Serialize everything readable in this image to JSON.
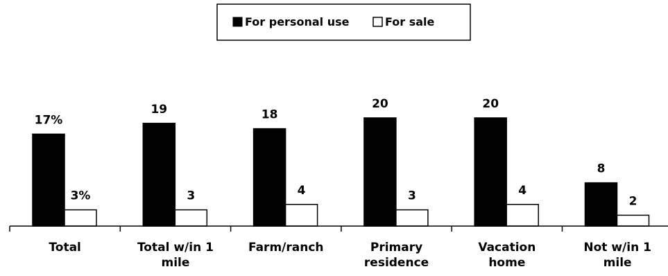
{
  "chart_data": {
    "type": "bar",
    "categories": [
      [
        "Total"
      ],
      [
        "Total w/in 1",
        "mile"
      ],
      [
        "Farm/ranch"
      ],
      [
        "Primary",
        "residence"
      ],
      [
        "Vacation",
        "home"
      ],
      [
        "Not w/in 1",
        "mile"
      ]
    ],
    "series": [
      {
        "name": "For personal use",
        "color": "#000000",
        "values": [
          17,
          19,
          18,
          20,
          20,
          8
        ],
        "labels": [
          "17%",
          "19",
          "18",
          "20",
          "20",
          "8"
        ]
      },
      {
        "name": "For sale",
        "color": "#ffffff",
        "values": [
          3,
          3,
          4,
          3,
          4,
          2
        ],
        "labels": [
          "3%",
          "3",
          "4",
          "3",
          "4",
          "2"
        ]
      }
    ],
    "ylim": [
      0,
      20
    ],
    "grid": false,
    "legend_position": "top-center"
  }
}
